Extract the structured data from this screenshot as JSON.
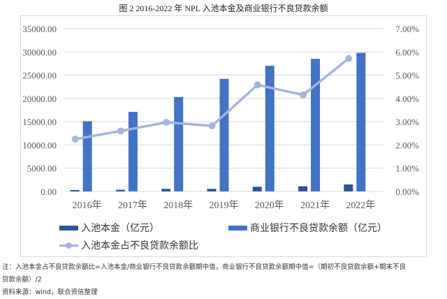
{
  "figure": {
    "title": "图 2   2016-2022 年 NPL 入池本金及商业银行不良贷款余额"
  },
  "legend": {
    "series1": "入池本金（亿元）",
    "series2": "商业银行不良贷款余额（亿元）",
    "series3": "入池本金占不良贷款余额比"
  },
  "notes": {
    "line1": "注：入池本金占不良贷款余额比=入池本金/商业银行不良贷款余额期中值，商业银行不良贷款余额期中值=（期初不良贷款余额+期末不良",
    "line2": "贷款余额）/2",
    "source": "资料来源：wind，联合资信整理"
  },
  "colors": {
    "series1": "#2f5597",
    "series2": "#4472c4",
    "series3": "#a5b5d9",
    "grid": "#d9d9d9"
  },
  "chart_data": {
    "type": "bar",
    "title": "图 2 2016-2022 年 NPL 入池本金及商业银行不良贷款余额",
    "categories": [
      "2016年",
      "2017年",
      "2018年",
      "2019年",
      "2020年",
      "2021年",
      "2022年"
    ],
    "series": [
      {
        "name": "入池本金（亿元）",
        "type": "bar",
        "axis": "left",
        "values": [
          300,
          350,
          550,
          550,
          1000,
          1100,
          1500
        ]
      },
      {
        "name": "商业银行不良贷款余额（亿元）",
        "type": "bar",
        "axis": "left",
        "values": [
          15100,
          17100,
          20300,
          24200,
          27000,
          28500,
          29800
        ]
      },
      {
        "name": "入池本金占不良贷款余额比",
        "type": "line",
        "axis": "right",
        "values": [
          2.25,
          2.6,
          2.97,
          2.82,
          4.58,
          4.15,
          5.72
        ],
        "unit": "%"
      }
    ],
    "yleft": {
      "min": 0,
      "max": 35000,
      "ticks": [
        "0.00",
        "5000.00",
        "10000.00",
        "15000.00",
        "20000.00",
        "25000.00",
        "30000.00",
        "35000.00"
      ]
    },
    "yright": {
      "min": 0,
      "max": 7,
      "ticks": [
        "0.00%",
        "1.00%",
        "2.00%",
        "3.00%",
        "4.00%",
        "5.00%",
        "6.00%",
        "7.00%"
      ]
    },
    "grid": true,
    "legend_position": "bottom"
  }
}
